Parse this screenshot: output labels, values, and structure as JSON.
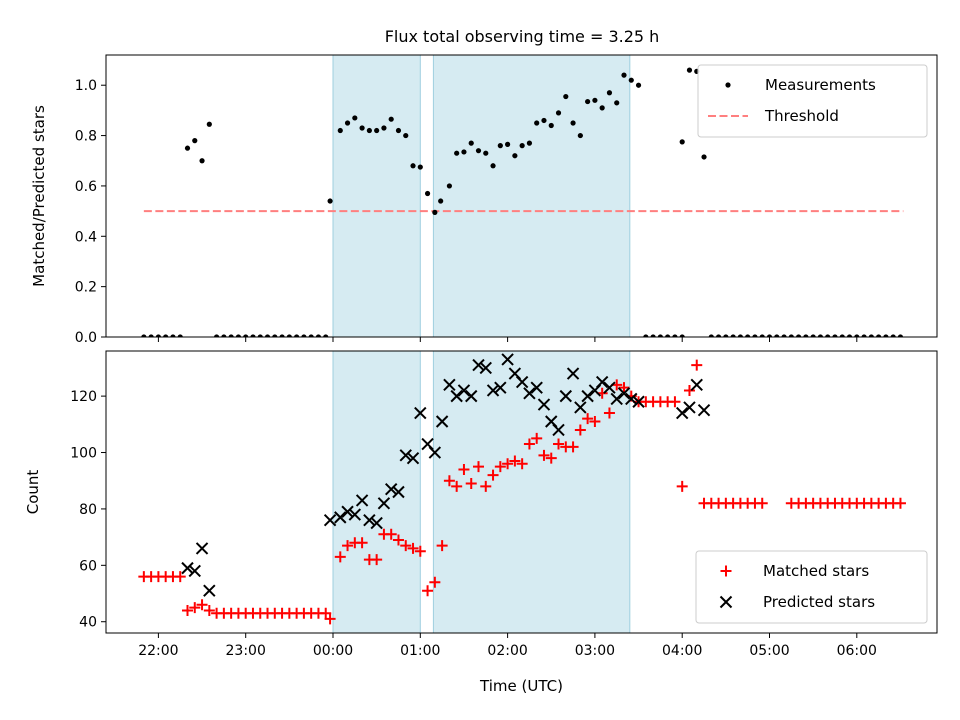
{
  "title": "Flux total observing time = 3.25 h",
  "chart_data": [
    {
      "type": "scatter",
      "ylabel": "Matched/Predicted stars",
      "ylim": [
        0.0,
        1.12
      ],
      "yticks": [
        "0.0",
        "0.2",
        "0.4",
        "0.6",
        "0.8",
        "1.0"
      ],
      "legend_position": "top-right",
      "shaded_intervals": [
        [
          "00:00",
          "01:00"
        ],
        [
          "01:09",
          "03:24"
        ]
      ],
      "threshold": {
        "name": "Threshold",
        "value": 0.5,
        "x_range": [
          "21:50",
          "06:32"
        ],
        "color": "#ff7f7f"
      },
      "series": [
        {
          "name": "Measurements",
          "color": "#000000",
          "points": [
            [
              "21:50",
              0
            ],
            [
              "21:55",
              0
            ],
            [
              "22:00",
              0
            ],
            [
              "22:05",
              0
            ],
            [
              "22:10",
              0
            ],
            [
              "22:15",
              0
            ],
            [
              "22:20",
              0.75
            ],
            [
              "22:25",
              0.78
            ],
            [
              "22:30",
              0.7
            ],
            [
              "22:35",
              0.845
            ],
            [
              "22:40",
              0
            ],
            [
              "22:45",
              0
            ],
            [
              "22:50",
              0
            ],
            [
              "22:55",
              0
            ],
            [
              "23:00",
              0
            ],
            [
              "23:05",
              0
            ],
            [
              "23:10",
              0
            ],
            [
              "23:15",
              0
            ],
            [
              "23:20",
              0
            ],
            [
              "23:25",
              0
            ],
            [
              "23:30",
              0
            ],
            [
              "23:35",
              0
            ],
            [
              "23:40",
              0
            ],
            [
              "23:45",
              0
            ],
            [
              "23:50",
              0
            ],
            [
              "23:55",
              0
            ],
            [
              "23:58",
              0.54
            ],
            [
              "00:05",
              0.82
            ],
            [
              "00:10",
              0.85
            ],
            [
              "00:15",
              0.87
            ],
            [
              "00:20",
              0.83
            ],
            [
              "00:25",
              0.82
            ],
            [
              "00:30",
              0.82
            ],
            [
              "00:35",
              0.83
            ],
            [
              "00:40",
              0.865
            ],
            [
              "00:45",
              0.82
            ],
            [
              "00:50",
              0.8
            ],
            [
              "00:55",
              0.68
            ],
            [
              "01:00",
              0.675
            ],
            [
              "01:05",
              0.57
            ],
            [
              "01:10",
              0.495
            ],
            [
              "01:14",
              0.54
            ],
            [
              "01:20",
              0.6
            ],
            [
              "01:25",
              0.73
            ],
            [
              "01:30",
              0.735
            ],
            [
              "01:35",
              0.77
            ],
            [
              "01:40",
              0.74
            ],
            [
              "01:45",
              0.73
            ],
            [
              "01:50",
              0.68
            ],
            [
              "01:55",
              0.76
            ],
            [
              "02:00",
              0.765
            ],
            [
              "02:05",
              0.72
            ],
            [
              "02:10",
              0.76
            ],
            [
              "02:15",
              0.77
            ],
            [
              "02:20",
              0.85
            ],
            [
              "02:25",
              0.86
            ],
            [
              "02:30",
              0.84
            ],
            [
              "02:35",
              0.89
            ],
            [
              "02:40",
              0.955
            ],
            [
              "02:45",
              0.85
            ],
            [
              "02:50",
              0.8
            ],
            [
              "02:55",
              0.935
            ],
            [
              "03:00",
              0.94
            ],
            [
              "03:05",
              0.91
            ],
            [
              "03:10",
              0.97
            ],
            [
              "03:15",
              0.93
            ],
            [
              "03:20",
              1.04
            ],
            [
              "03:25",
              1.02
            ],
            [
              "03:30",
              1.0
            ],
            [
              "03:35",
              0
            ],
            [
              "03:40",
              0
            ],
            [
              "03:45",
              0
            ],
            [
              "03:50",
              0
            ],
            [
              "03:55",
              0
            ],
            [
              "04:00",
              0
            ],
            [
              "04:00",
              0.775
            ],
            [
              "04:05",
              1.06
            ],
            [
              "04:10",
              1.055
            ],
            [
              "04:15",
              0.715
            ],
            [
              "04:20",
              0
            ],
            [
              "04:25",
              0
            ],
            [
              "04:30",
              0
            ],
            [
              "04:35",
              0
            ],
            [
              "04:40",
              0
            ],
            [
              "04:45",
              0
            ],
            [
              "04:50",
              0
            ],
            [
              "04:55",
              0
            ],
            [
              "05:00",
              0
            ],
            [
              "05:05",
              0
            ],
            [
              "05:10",
              0
            ],
            [
              "05:15",
              0
            ],
            [
              "05:20",
              0
            ],
            [
              "05:25",
              0
            ],
            [
              "05:30",
              0
            ],
            [
              "05:35",
              0
            ],
            [
              "05:40",
              0
            ],
            [
              "05:45",
              0
            ],
            [
              "05:50",
              0
            ],
            [
              "05:55",
              0
            ],
            [
              "06:00",
              0
            ],
            [
              "06:05",
              0
            ],
            [
              "06:10",
              0
            ],
            [
              "06:15",
              0
            ],
            [
              "06:20",
              0
            ],
            [
              "06:25",
              0
            ],
            [
              "06:30",
              0
            ]
          ]
        }
      ]
    },
    {
      "type": "scatter",
      "xlabel": "Time (UTC)",
      "ylabel": "Count",
      "ylim": [
        36,
        136
      ],
      "yticks": [
        "40",
        "60",
        "80",
        "100",
        "120"
      ],
      "xticks": [
        "22:00",
        "23:00",
        "00:00",
        "01:00",
        "02:00",
        "03:00",
        "04:00",
        "05:00",
        "06:00"
      ],
      "legend_position": "bottom-right",
      "shaded_intervals": [
        [
          "00:00",
          "01:00"
        ],
        [
          "01:09",
          "03:24"
        ]
      ],
      "series": [
        {
          "name": "Matched stars",
          "color": "#ff0000",
          "marker": "plus",
          "points": [
            [
              "21:50",
              56
            ],
            [
              "21:55",
              56
            ],
            [
              "22:00",
              56
            ],
            [
              "22:05",
              56
            ],
            [
              "22:10",
              56
            ],
            [
              "22:15",
              56
            ],
            [
              "22:20",
              44
            ],
            [
              "22:25",
              45
            ],
            [
              "22:30",
              46
            ],
            [
              "22:35",
              44
            ],
            [
              "22:40",
              43
            ],
            [
              "22:45",
              43
            ],
            [
              "22:50",
              43
            ],
            [
              "22:55",
              43
            ],
            [
              "23:00",
              43
            ],
            [
              "23:05",
              43
            ],
            [
              "23:10",
              43
            ],
            [
              "23:15",
              43
            ],
            [
              "23:20",
              43
            ],
            [
              "23:25",
              43
            ],
            [
              "23:30",
              43
            ],
            [
              "23:35",
              43
            ],
            [
              "23:40",
              43
            ],
            [
              "23:45",
              43
            ],
            [
              "23:50",
              43
            ],
            [
              "23:55",
              43
            ],
            [
              "23:58",
              41
            ],
            [
              "00:05",
              63
            ],
            [
              "00:10",
              67
            ],
            [
              "00:15",
              68
            ],
            [
              "00:20",
              68
            ],
            [
              "00:25",
              62
            ],
            [
              "00:30",
              62
            ],
            [
              "00:35",
              71
            ],
            [
              "00:40",
              71
            ],
            [
              "00:45",
              69
            ],
            [
              "00:50",
              67
            ],
            [
              "00:55",
              66
            ],
            [
              "01:00",
              65
            ],
            [
              "01:05",
              51
            ],
            [
              "01:10",
              54
            ],
            [
              "01:15",
              67
            ],
            [
              "01:20",
              90
            ],
            [
              "01:25",
              88
            ],
            [
              "01:30",
              94
            ],
            [
              "01:35",
              89
            ],
            [
              "01:40",
              95
            ],
            [
              "01:45",
              88
            ],
            [
              "01:50",
              92
            ],
            [
              "01:55",
              95
            ],
            [
              "02:00",
              96
            ],
            [
              "02:05",
              97
            ],
            [
              "02:10",
              96
            ],
            [
              "02:15",
              103
            ],
            [
              "02:20",
              105
            ],
            [
              "02:25",
              99
            ],
            [
              "02:30",
              98
            ],
            [
              "02:35",
              103
            ],
            [
              "02:40",
              102
            ],
            [
              "02:45",
              102
            ],
            [
              "02:50",
              108
            ],
            [
              "02:55",
              112
            ],
            [
              "03:00",
              111
            ],
            [
              "03:05",
              121
            ],
            [
              "03:10",
              114
            ],
            [
              "03:15",
              124
            ],
            [
              "03:20",
              123
            ],
            [
              "03:25",
              120
            ],
            [
              "03:30",
              118
            ],
            [
              "03:35",
              118
            ],
            [
              "03:40",
              118
            ],
            [
              "03:45",
              118
            ],
            [
              "03:50",
              118
            ],
            [
              "03:55",
              118
            ],
            [
              "04:00",
              88
            ],
            [
              "04:05",
              122
            ],
            [
              "04:10",
              131
            ],
            [
              "04:15",
              82
            ],
            [
              "04:20",
              82
            ],
            [
              "04:25",
              82
            ],
            [
              "04:30",
              82
            ],
            [
              "04:35",
              82
            ],
            [
              "04:40",
              82
            ],
            [
              "04:45",
              82
            ],
            [
              "04:50",
              82
            ],
            [
              "04:55",
              82
            ],
            [
              "05:15",
              82
            ],
            [
              "05:20",
              82
            ],
            [
              "05:25",
              82
            ],
            [
              "05:30",
              82
            ],
            [
              "05:35",
              82
            ],
            [
              "05:40",
              82
            ],
            [
              "05:45",
              82
            ],
            [
              "05:50",
              82
            ],
            [
              "05:55",
              82
            ],
            [
              "06:00",
              82
            ],
            [
              "06:05",
              82
            ],
            [
              "06:10",
              82
            ],
            [
              "06:15",
              82
            ],
            [
              "06:20",
              82
            ],
            [
              "06:25",
              82
            ],
            [
              "06:30",
              82
            ]
          ]
        },
        {
          "name": "Predicted stars",
          "color": "#000000",
          "marker": "x",
          "points": [
            [
              "22:20",
              59
            ],
            [
              "22:25",
              58
            ],
            [
              "22:30",
              66
            ],
            [
              "22:35",
              51
            ],
            [
              "23:58",
              76
            ],
            [
              "00:05",
              77
            ],
            [
              "00:10",
              79
            ],
            [
              "00:15",
              78
            ],
            [
              "00:20",
              83
            ],
            [
              "00:25",
              76
            ],
            [
              "00:30",
              75
            ],
            [
              "00:35",
              82
            ],
            [
              "00:40",
              87
            ],
            [
              "00:45",
              86
            ],
            [
              "00:50",
              99
            ],
            [
              "00:55",
              98
            ],
            [
              "01:00",
              114
            ],
            [
              "01:05",
              103
            ],
            [
              "01:10",
              100
            ],
            [
              "01:15",
              111
            ],
            [
              "01:20",
              124
            ],
            [
              "01:25",
              120
            ],
            [
              "01:30",
              122
            ],
            [
              "01:35",
              120
            ],
            [
              "01:40",
              131
            ],
            [
              "01:45",
              130
            ],
            [
              "01:50",
              122
            ],
            [
              "01:55",
              123
            ],
            [
              "02:00",
              133
            ],
            [
              "02:05",
              128
            ],
            [
              "02:10",
              125
            ],
            [
              "02:15",
              121
            ],
            [
              "02:20",
              123
            ],
            [
              "02:25",
              117
            ],
            [
              "02:30",
              111
            ],
            [
              "02:35",
              108
            ],
            [
              "02:40",
              120
            ],
            [
              "02:45",
              128
            ],
            [
              "02:50",
              116
            ],
            [
              "02:55",
              120
            ],
            [
              "03:00",
              122
            ],
            [
              "03:05",
              125
            ],
            [
              "03:10",
              123
            ],
            [
              "03:15",
              119
            ],
            [
              "03:20",
              121
            ],
            [
              "03:25",
              119
            ],
            [
              "03:30",
              118
            ],
            [
              "04:00",
              114
            ],
            [
              "04:05",
              116
            ],
            [
              "04:10",
              124
            ],
            [
              "04:15",
              115
            ]
          ]
        }
      ]
    }
  ]
}
